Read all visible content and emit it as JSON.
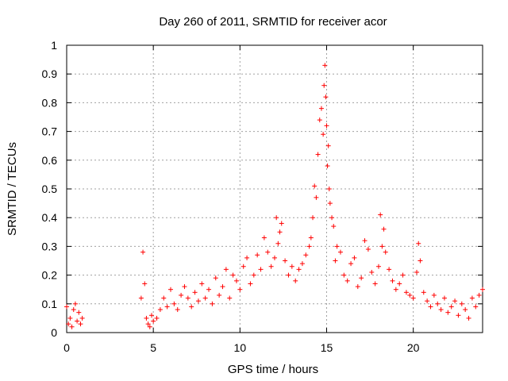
{
  "chart_data": {
    "type": "scatter",
    "title": "Day 260 of 2011, SRMTID for receiver acor",
    "xlabel": "GPS time / hours",
    "ylabel": "SRMTID / TECUs",
    "xlim": [
      0,
      24
    ],
    "ylim": [
      0,
      1
    ],
    "x_ticks": [
      0,
      5,
      10,
      15,
      20
    ],
    "x_tick_labels": [
      "0",
      "5",
      "10",
      "15",
      "20"
    ],
    "y_ticks": [
      0,
      0.1,
      0.2,
      0.3,
      0.4,
      0.5,
      0.6,
      0.7,
      0.8,
      0.9,
      1
    ],
    "y_tick_labels": [
      "0",
      "0.1",
      "0.2",
      "0.3",
      "0.4",
      "0.5",
      "0.6",
      "0.7",
      "0.8",
      "0.9",
      "1"
    ],
    "grid": true,
    "marker": "+",
    "series": [
      {
        "name": "SRMTID",
        "color": "#ff0000",
        "x": [
          0.0,
          0.1,
          0.2,
          0.3,
          0.4,
          0.5,
          0.6,
          0.7,
          0.8,
          0.9,
          4.3,
          4.4,
          4.5,
          4.6,
          4.7,
          4.8,
          4.9,
          5.0,
          5.2,
          5.4,
          5.6,
          5.8,
          6.0,
          6.2,
          6.4,
          6.6,
          6.8,
          7.0,
          7.2,
          7.4,
          7.6,
          7.8,
          8.0,
          8.2,
          8.4,
          8.6,
          8.8,
          9.0,
          9.2,
          9.4,
          9.6,
          9.8,
          10.0,
          10.2,
          10.4,
          10.6,
          10.8,
          11.0,
          11.2,
          11.4,
          11.6,
          11.8,
          12.0,
          12.1,
          12.2,
          12.3,
          12.4,
          12.6,
          12.8,
          13.0,
          13.2,
          13.4,
          13.6,
          13.8,
          14.0,
          14.1,
          14.2,
          14.3,
          14.4,
          14.5,
          14.6,
          14.7,
          14.8,
          14.85,
          14.9,
          14.95,
          15.0,
          15.05,
          15.1,
          15.15,
          15.2,
          15.3,
          15.4,
          15.5,
          15.6,
          15.8,
          16.0,
          16.2,
          16.4,
          16.6,
          16.8,
          17.0,
          17.2,
          17.4,
          17.6,
          17.8,
          18.0,
          18.1,
          18.2,
          18.3,
          18.4,
          18.6,
          18.8,
          19.0,
          19.2,
          19.4,
          19.6,
          19.8,
          20.0,
          20.2,
          20.3,
          20.4,
          20.6,
          20.8,
          21.0,
          21.2,
          21.4,
          21.6,
          21.8,
          22.0,
          22.2,
          22.4,
          22.6,
          22.8,
          23.0,
          23.2,
          23.4,
          23.6,
          23.8,
          24.0
        ],
        "y": [
          0.09,
          0.03,
          0.05,
          0.02,
          0.08,
          0.1,
          0.04,
          0.07,
          0.03,
          0.05,
          0.12,
          0.28,
          0.17,
          0.05,
          0.03,
          0.02,
          0.06,
          0.04,
          0.05,
          0.08,
          0.12,
          0.09,
          0.15,
          0.1,
          0.08,
          0.13,
          0.16,
          0.12,
          0.09,
          0.14,
          0.11,
          0.17,
          0.12,
          0.15,
          0.1,
          0.19,
          0.13,
          0.16,
          0.22,
          0.12,
          0.2,
          0.18,
          0.15,
          0.23,
          0.26,
          0.17,
          0.2,
          0.27,
          0.22,
          0.33,
          0.28,
          0.23,
          0.26,
          0.4,
          0.31,
          0.35,
          0.38,
          0.25,
          0.2,
          0.23,
          0.18,
          0.22,
          0.24,
          0.27,
          0.3,
          0.33,
          0.4,
          0.51,
          0.47,
          0.62,
          0.74,
          0.78,
          0.69,
          0.86,
          0.93,
          0.82,
          0.72,
          0.58,
          0.65,
          0.5,
          0.45,
          0.4,
          0.37,
          0.25,
          0.3,
          0.28,
          0.2,
          0.18,
          0.24,
          0.26,
          0.16,
          0.19,
          0.32,
          0.29,
          0.21,
          0.17,
          0.23,
          0.41,
          0.3,
          0.36,
          0.28,
          0.22,
          0.18,
          0.15,
          0.17,
          0.2,
          0.14,
          0.13,
          0.12,
          0.21,
          0.31,
          0.25,
          0.14,
          0.11,
          0.09,
          0.13,
          0.1,
          0.08,
          0.12,
          0.07,
          0.09,
          0.11,
          0.06,
          0.1,
          0.08,
          0.05,
          0.12,
          0.09,
          0.13,
          0.15
        ]
      }
    ]
  }
}
